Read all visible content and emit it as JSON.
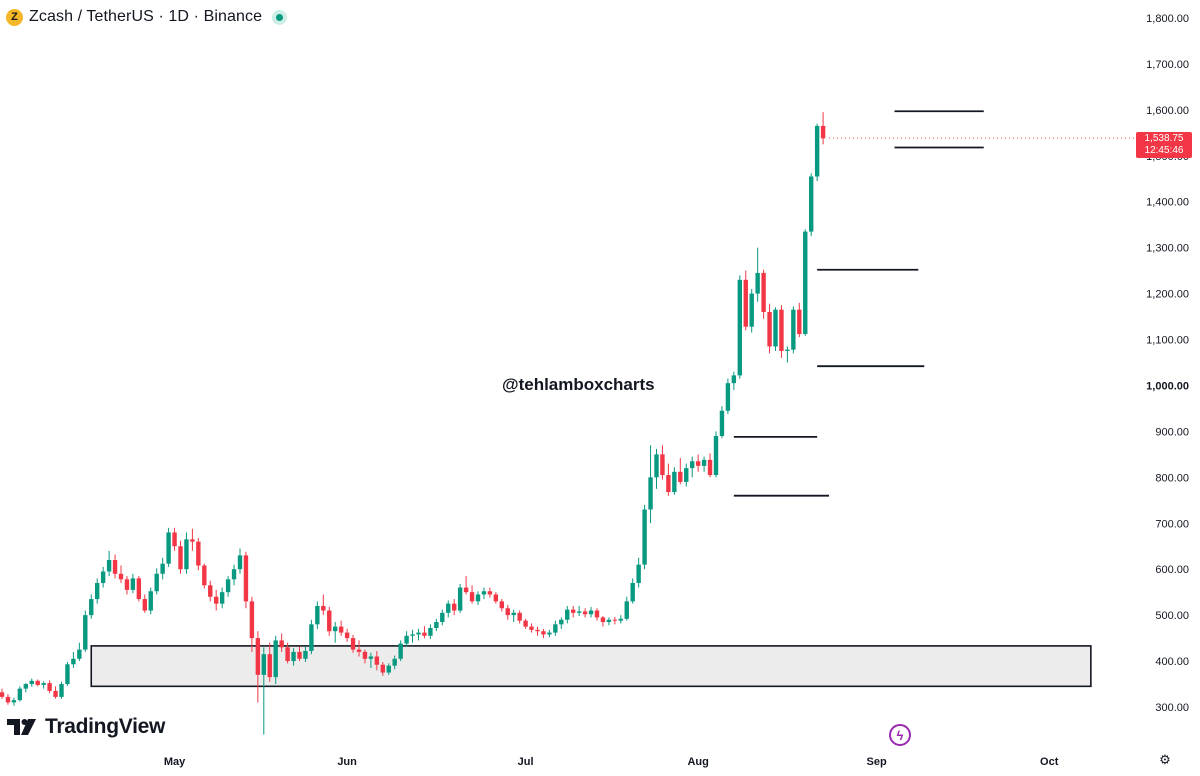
{
  "header": {
    "coin_glyph": "Z",
    "title": "Zcash / TetherUS · 1D · Binance"
  },
  "watermark": "@tehlamboxcharts",
  "branding": {
    "logo_text": "TradingView"
  },
  "price_tag": {
    "price": "1,538.75",
    "countdown": "12:45:46",
    "color": "#f23645"
  },
  "colors": {
    "up": "#089981",
    "down": "#f23645",
    "zone_fill": "#ececec",
    "line": "#131722"
  },
  "chart_data": {
    "type": "candlestick",
    "title": "Zcash / TetherUS · 1D · Binance",
    "ylim": [
      274,
      1805
    ],
    "y_ticks": [
      "1,800.00",
      "1,700.00",
      "1,600.00",
      "1,500.00",
      "1,400.00",
      "1,300.00",
      "1,200.00",
      "1,100.00",
      "1,000.00",
      "900.00",
      "800.00",
      "700.00",
      "600.00",
      "500.00",
      "400.00",
      "300.00"
    ],
    "y_tick_values": [
      1800,
      1700,
      1600,
      1500,
      1400,
      1300,
      1200,
      1100,
      1000,
      900,
      800,
      700,
      600,
      500,
      400,
      300
    ],
    "x_ticks": [
      "May",
      "Jun",
      "Jul",
      "Aug",
      "Sep",
      "Oct"
    ],
    "x_tick_days": [
      29,
      58,
      88,
      117,
      147,
      176
    ],
    "first_candle_day": 0,
    "candle_ohlc": [
      [
        332,
        340,
        318,
        322
      ],
      [
        322,
        328,
        305,
        310
      ],
      [
        310,
        320,
        303,
        315
      ],
      [
        315,
        345,
        312,
        340
      ],
      [
        340,
        352,
        332,
        350
      ],
      [
        350,
        362,
        344,
        357
      ],
      [
        357,
        360,
        345,
        348
      ],
      [
        348,
        356,
        340,
        352
      ],
      [
        352,
        358,
        330,
        335
      ],
      [
        335,
        345,
        318,
        322
      ],
      [
        322,
        355,
        318,
        350
      ],
      [
        350,
        398,
        346,
        393
      ],
      [
        393,
        420,
        385,
        405
      ],
      [
        405,
        440,
        400,
        425
      ],
      [
        425,
        510,
        420,
        500
      ],
      [
        500,
        545,
        492,
        535
      ],
      [
        535,
        580,
        525,
        570
      ],
      [
        570,
        605,
        560,
        595
      ],
      [
        595,
        640,
        585,
        620
      ],
      [
        620,
        632,
        580,
        590
      ],
      [
        590,
        608,
        570,
        578
      ],
      [
        578,
        585,
        545,
        555
      ],
      [
        555,
        590,
        548,
        580
      ],
      [
        580,
        585,
        530,
        535
      ],
      [
        535,
        545,
        505,
        510
      ],
      [
        510,
        560,
        502,
        552
      ],
      [
        552,
        602,
        545,
        590
      ],
      [
        590,
        625,
        578,
        612
      ],
      [
        612,
        690,
        605,
        680
      ],
      [
        680,
        690,
        640,
        650
      ],
      [
        650,
        662,
        590,
        600
      ],
      [
        600,
        680,
        590,
        665
      ],
      [
        665,
        688,
        640,
        660
      ],
      [
        660,
        668,
        598,
        608
      ],
      [
        608,
        612,
        558,
        565
      ],
      [
        565,
        575,
        530,
        540
      ],
      [
        540,
        555,
        510,
        525
      ],
      [
        525,
        560,
        515,
        550
      ],
      [
        550,
        585,
        540,
        578
      ],
      [
        578,
        610,
        565,
        600
      ],
      [
        600,
        645,
        590,
        630
      ],
      [
        630,
        638,
        515,
        530
      ],
      [
        530,
        540,
        420,
        450
      ],
      [
        450,
        465,
        310,
        370
      ],
      [
        370,
        430,
        240,
        415
      ],
      [
        415,
        440,
        355,
        365
      ],
      [
        365,
        455,
        350,
        445
      ],
      [
        445,
        460,
        420,
        430
      ],
      [
        430,
        440,
        395,
        400
      ],
      [
        400,
        428,
        390,
        420
      ],
      [
        420,
        432,
        400,
        405
      ],
      [
        405,
        432,
        398,
        422
      ],
      [
        422,
        490,
        415,
        480
      ],
      [
        480,
        530,
        470,
        520
      ],
      [
        520,
        545,
        500,
        510
      ],
      [
        510,
        518,
        455,
        465
      ],
      [
        465,
        485,
        440,
        475
      ],
      [
        475,
        488,
        455,
        462
      ],
      [
        462,
        470,
        442,
        450
      ],
      [
        450,
        457,
        418,
        425
      ],
      [
        425,
        445,
        410,
        420
      ],
      [
        420,
        425,
        395,
        405
      ],
      [
        405,
        418,
        385,
        410
      ],
      [
        410,
        422,
        380,
        392
      ],
      [
        392,
        398,
        368,
        375
      ],
      [
        375,
        395,
        370,
        390
      ],
      [
        390,
        412,
        382,
        405
      ],
      [
        405,
        445,
        400,
        438
      ],
      [
        438,
        465,
        432,
        455
      ],
      [
        455,
        468,
        440,
        458
      ],
      [
        458,
        470,
        445,
        462
      ],
      [
        462,
        476,
        450,
        455
      ],
      [
        455,
        480,
        448,
        472
      ],
      [
        472,
        492,
        465,
        485
      ],
      [
        485,
        512,
        478,
        505
      ],
      [
        505,
        532,
        495,
        525
      ],
      [
        525,
        535,
        500,
        510
      ],
      [
        510,
        568,
        505,
        560
      ],
      [
        560,
        585,
        545,
        550
      ],
      [
        550,
        565,
        525,
        530
      ],
      [
        530,
        552,
        522,
        545
      ],
      [
        545,
        560,
        535,
        552
      ],
      [
        552,
        560,
        538,
        545
      ],
      [
        545,
        550,
        525,
        530
      ],
      [
        530,
        535,
        508,
        515
      ],
      [
        515,
        522,
        490,
        500
      ],
      [
        500,
        512,
        485,
        505
      ],
      [
        505,
        510,
        482,
        488
      ],
      [
        488,
        492,
        470,
        475
      ],
      [
        475,
        482,
        462,
        468
      ],
      [
        468,
        475,
        455,
        465
      ],
      [
        465,
        470,
        450,
        458
      ],
      [
        458,
        468,
        452,
        462
      ],
      [
        462,
        488,
        455,
        480
      ],
      [
        480,
        495,
        470,
        490
      ],
      [
        490,
        520,
        482,
        512
      ],
      [
        512,
        520,
        495,
        505
      ],
      [
        505,
        520,
        498,
        508
      ],
      [
        508,
        515,
        495,
        502
      ],
      [
        502,
        518,
        495,
        510
      ],
      [
        510,
        515,
        488,
        495
      ],
      [
        495,
        498,
        475,
        485
      ],
      [
        485,
        495,
        478,
        490
      ],
      [
        490,
        496,
        480,
        488
      ],
      [
        488,
        500,
        482,
        492
      ],
      [
        492,
        540,
        488,
        530
      ],
      [
        530,
        580,
        525,
        570
      ],
      [
        570,
        625,
        560,
        610
      ],
      [
        610,
        740,
        600,
        730
      ],
      [
        730,
        870,
        700,
        800
      ],
      [
        800,
        862,
        775,
        850
      ],
      [
        850,
        870,
        795,
        805
      ],
      [
        805,
        830,
        760,
        768
      ],
      [
        768,
        822,
        762,
        812
      ],
      [
        812,
        842,
        785,
        790
      ],
      [
        790,
        830,
        780,
        820
      ],
      [
        820,
        845,
        800,
        835
      ],
      [
        835,
        850,
        812,
        825
      ],
      [
        825,
        845,
        812,
        838
      ],
      [
        838,
        852,
        800,
        805
      ],
      [
        805,
        900,
        800,
        890
      ],
      [
        890,
        955,
        885,
        945
      ],
      [
        945,
        1015,
        938,
        1005
      ],
      [
        1005,
        1030,
        990,
        1022
      ],
      [
        1022,
        1240,
        1015,
        1230
      ],
      [
        1230,
        1250,
        1120,
        1128
      ],
      [
        1128,
        1210,
        1115,
        1200
      ],
      [
        1200,
        1300,
        1182,
        1245
      ],
      [
        1245,
        1252,
        1145,
        1160
      ],
      [
        1160,
        1178,
        1070,
        1085
      ],
      [
        1085,
        1170,
        1075,
        1165
      ],
      [
        1165,
        1175,
        1060,
        1075
      ],
      [
        1075,
        1085,
        1050,
        1078
      ],
      [
        1078,
        1172,
        1070,
        1165
      ],
      [
        1165,
        1180,
        1105,
        1112
      ],
      [
        1112,
        1340,
        1108,
        1335
      ],
      [
        1335,
        1462,
        1325,
        1455
      ],
      [
        1455,
        1570,
        1445,
        1565
      ],
      [
        1565,
        1595,
        1525,
        1538
      ]
    ],
    "level_lines": [
      {
        "start_day": 123,
        "end_day": 137,
        "price": 888
      },
      {
        "start_day": 123,
        "end_day": 139,
        "price": 760
      },
      {
        "start_day": 137,
        "end_day": 154,
        "price": 1252
      },
      {
        "start_day": 137,
        "end_day": 155,
        "price": 1042
      },
      {
        "start_day": 150,
        "end_day": 165,
        "price": 1597
      },
      {
        "start_day": 150,
        "end_day": 165,
        "price": 1518
      }
    ],
    "zone": {
      "start_day": 15,
      "end_day": 183,
      "top": 433,
      "bottom": 345
    },
    "last_price": 1538.75
  }
}
